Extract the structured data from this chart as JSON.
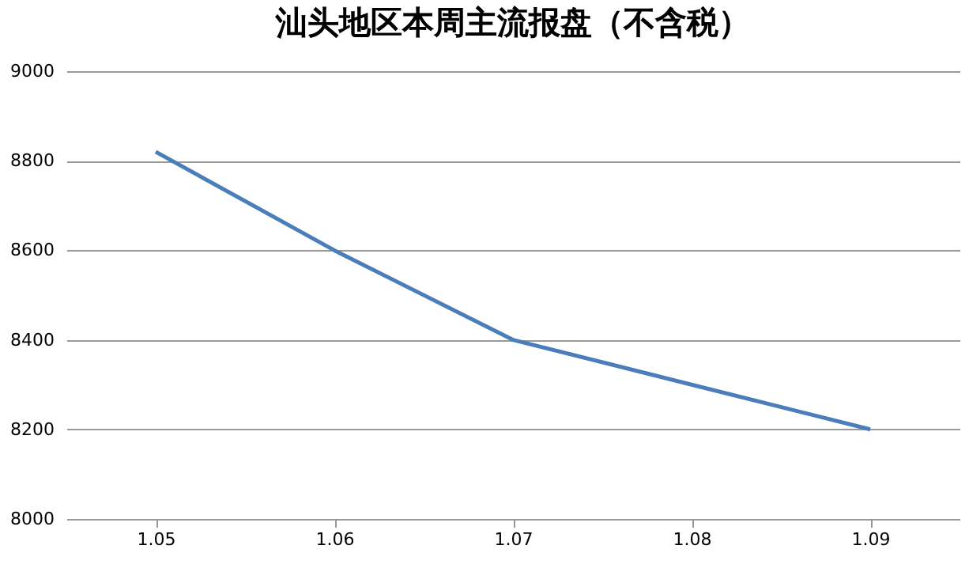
{
  "chart_data": {
    "type": "line",
    "title": "汕头地区本周主流报盘（不含税）",
    "categories": [
      "1.05",
      "1.06",
      "1.07",
      "1.08",
      "1.09"
    ],
    "series": [
      {
        "color": "#4a7ebb",
        "values": [
          8820,
          8600,
          8400,
          8300,
          8200
        ]
      }
    ],
    "ylim": [
      8000,
      9000
    ],
    "yticks": [
      8000,
      8200,
      8400,
      8600,
      8800,
      9000
    ],
    "grid": "y",
    "marker": "none",
    "line_style": "solid"
  }
}
